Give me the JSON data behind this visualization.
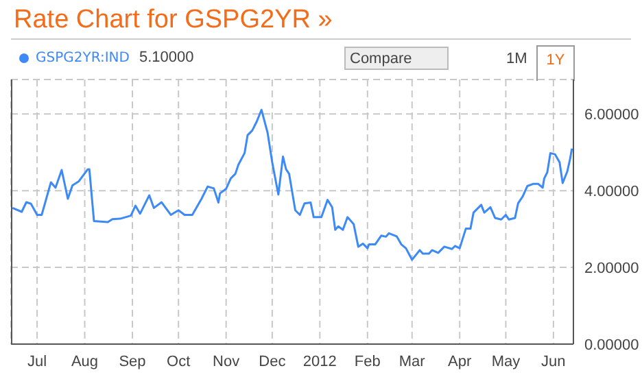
{
  "chart_data": {
    "type": "line",
    "title": "Rate Chart for GSPG2YR »",
    "x": [
      "2011-06-15",
      "2011-06-21",
      "2011-06-24",
      "2011-06-27",
      "2011-07-01",
      "2011-07-04",
      "2011-07-10",
      "2011-07-13",
      "2011-07-17",
      "2011-07-21",
      "2011-07-24",
      "2011-07-28",
      "2011-08-03",
      "2011-08-04",
      "2011-08-07",
      "2011-08-16",
      "2011-08-19",
      "2011-08-24",
      "2011-08-31",
      "2011-09-03",
      "2011-09-06",
      "2011-09-12",
      "2011-09-15",
      "2011-09-20",
      "2011-09-26",
      "2011-10-01",
      "2011-10-05",
      "2011-10-10",
      "2011-10-16",
      "2011-10-20",
      "2011-10-24",
      "2011-10-27",
      "2011-10-28",
      "2011-11-01",
      "2011-11-04",
      "2011-11-07",
      "2011-11-09",
      "2011-11-13",
      "2011-11-15",
      "2011-11-18",
      "2011-11-21",
      "2011-11-24",
      "2011-11-28",
      "2011-12-01",
      "2011-12-05",
      "2011-12-08",
      "2011-12-10",
      "2011-12-12",
      "2011-12-16",
      "2011-12-19",
      "2011-12-22",
      "2011-12-26",
      "2011-12-28",
      "2012-01-02",
      "2012-01-06",
      "2012-01-09",
      "2012-01-11",
      "2012-01-13",
      "2012-01-16",
      "2012-01-19",
      "2012-01-23",
      "2012-01-26",
      "2012-01-29",
      "2012-02-01",
      "2012-02-02",
      "2012-02-06",
      "2012-02-10",
      "2012-02-13",
      "2012-02-15",
      "2012-02-20",
      "2012-02-23",
      "2012-02-26",
      "2012-03-01",
      "2012-03-03",
      "2012-03-06",
      "2012-03-08",
      "2012-03-12",
      "2012-03-14",
      "2012-03-18",
      "2012-03-22",
      "2012-03-27",
      "2012-03-29",
      "2012-04-01",
      "2012-04-05",
      "2012-04-08",
      "2012-04-10",
      "2012-04-13",
      "2012-04-15",
      "2012-04-17",
      "2012-04-21",
      "2012-04-24",
      "2012-04-28",
      "2012-05-01",
      "2012-05-03",
      "2012-05-07",
      "2012-05-09",
      "2012-05-12",
      "2012-05-15",
      "2012-05-19",
      "2012-05-22",
      "2012-05-25",
      "2012-05-26",
      "2012-05-28",
      "2012-05-30",
      "2012-06-02",
      "2012-06-05",
      "2012-06-07",
      "2012-06-10",
      "2012-06-12",
      "2012-06-13"
    ],
    "series": [
      {
        "name": "GSPG2YR:IND",
        "color": "#3d8af7",
        "values": [
          3.55,
          3.45,
          3.7,
          3.66,
          3.37,
          3.37,
          4.22,
          4.08,
          4.54,
          3.79,
          4.14,
          4.24,
          4.56,
          4.56,
          3.21,
          3.18,
          3.26,
          3.27,
          3.35,
          3.61,
          3.4,
          3.88,
          3.55,
          3.7,
          3.37,
          3.49,
          3.37,
          3.37,
          3.79,
          4.11,
          4.06,
          3.69,
          3.93,
          4.05,
          4.32,
          4.44,
          4.68,
          4.98,
          5.45,
          5.57,
          5.81,
          6.11,
          5.51,
          4.74,
          3.9,
          4.89,
          4.56,
          4.44,
          3.49,
          3.37,
          3.67,
          3.69,
          3.31,
          3.31,
          3.76,
          3.57,
          2.98,
          3.07,
          2.98,
          3.31,
          3.13,
          2.54,
          2.62,
          2.5,
          2.6,
          2.6,
          2.83,
          2.8,
          2.89,
          2.81,
          2.6,
          2.5,
          2.2,
          2.3,
          2.45,
          2.36,
          2.36,
          2.45,
          2.38,
          2.54,
          2.48,
          2.56,
          2.5,
          3.01,
          3.01,
          3.43,
          3.55,
          3.63,
          3.43,
          3.57,
          3.29,
          3.25,
          3.37,
          3.25,
          3.29,
          3.67,
          3.85,
          4.12,
          4.18,
          4.18,
          4.08,
          4.32,
          4.48,
          4.98,
          4.95,
          4.74,
          4.2,
          4.5,
          4.86,
          5.1
        ]
      }
    ],
    "xlim": [
      "2011-06-14",
      "2012-06-14"
    ],
    "xticks": [
      {
        "value": "2011-07-01",
        "label": "Jul"
      },
      {
        "value": "2011-08-01",
        "label": "Aug"
      },
      {
        "value": "2011-09-01",
        "label": "Sep"
      },
      {
        "value": "2011-10-01",
        "label": "Oct"
      },
      {
        "value": "2011-11-01",
        "label": "Nov"
      },
      {
        "value": "2011-12-01",
        "label": "Dec"
      },
      {
        "value": "2012-01-01",
        "label": "2012"
      },
      {
        "value": "2012-02-01",
        "label": "Feb"
      },
      {
        "value": "2012-03-01",
        "label": "Mar"
      },
      {
        "value": "2012-04-01",
        "label": "Apr"
      },
      {
        "value": "2012-05-01",
        "label": "May"
      },
      {
        "value": "2012-06-01",
        "label": "Jun"
      }
    ],
    "ylim": [
      0,
      6.9
    ],
    "yticks": [
      {
        "value": 0,
        "label": "0.00000"
      },
      {
        "value": 2,
        "label": "2.00000"
      },
      {
        "value": 4,
        "label": "4.00000"
      },
      {
        "value": 6,
        "label": "6.00000"
      }
    ],
    "grid": true,
    "legend": "top left",
    "marker": "none",
    "line_style": "solid",
    "annotations": [
      "5.10000",
      "Compare",
      "1M",
      "1Y"
    ]
  }
}
